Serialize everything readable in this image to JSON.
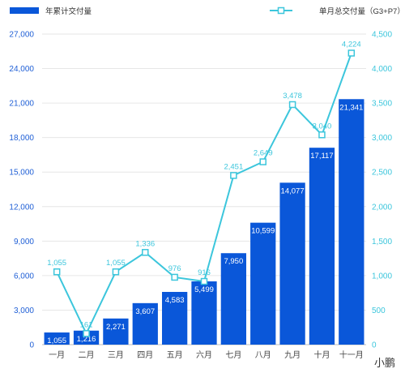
{
  "chart_data": {
    "type": "bar",
    "categories": [
      "一月",
      "二月",
      "三月",
      "四月",
      "五月",
      "六月",
      "七月",
      "八月",
      "九月",
      "十月",
      "十一月"
    ],
    "series": [
      {
        "name": "年累计交付量",
        "type": "bar",
        "axis": "left",
        "color": "#0a57d9",
        "values": [
          1055,
          1216,
          2271,
          3607,
          4583,
          5499,
          7950,
          10599,
          14077,
          17117,
          21341
        ],
        "labels": [
          "1,055",
          "1,216",
          "2,271",
          "3,607",
          "4,583",
          "5,499",
          "7,950",
          "10,599",
          "14,077",
          "17,117",
          "21,341"
        ]
      },
      {
        "name": "单月总交付量（G3+P7）",
        "type": "line",
        "axis": "right",
        "color": "#3cc6dc",
        "values": [
          1055,
          161,
          1055,
          1336,
          976,
          916,
          2451,
          2649,
          3478,
          3040,
          4224
        ],
        "labels": [
          "1,055",
          "161",
          "1,055",
          "1,336",
          "976",
          "916",
          "2,451",
          "2,649",
          "3,478",
          "3,040",
          "4,224"
        ]
      }
    ],
    "left_axis": {
      "ylim": [
        0,
        27000
      ],
      "ticks": [
        0,
        3000,
        6000,
        9000,
        12000,
        15000,
        18000,
        21000,
        24000,
        27000
      ],
      "tick_labels": [
        "0",
        "3,000",
        "6,000",
        "9,000",
        "12,000",
        "15,000",
        "18,000",
        "21,000",
        "24,000",
        "27,000"
      ],
      "color": "#1f5fd6"
    },
    "right_axis": {
      "ylim": [
        0,
        4500
      ],
      "ticks": [
        0,
        500,
        1000,
        1500,
        2000,
        2500,
        3000,
        3500,
        4000,
        4500
      ],
      "tick_labels": [
        "0",
        "500",
        "1,000",
        "1,500",
        "2,000",
        "2,500",
        "3,000",
        "3,500",
        "4,000",
        "4,500"
      ],
      "color": "#3cc6dc"
    },
    "legend_placement": "top",
    "grid": true,
    "watermark": "小鹏"
  }
}
